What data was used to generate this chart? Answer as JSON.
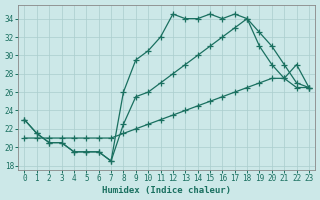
{
  "xlabel": "Humidex (Indice chaleur)",
  "bg_color": "#cce8e8",
  "line_color": "#1a7060",
  "grid_color": "#b0d4d4",
  "xlim": [
    -0.5,
    23.5
  ],
  "ylim": [
    17.5,
    35.5
  ],
  "yticks": [
    18,
    20,
    22,
    24,
    26,
    28,
    30,
    32,
    34
  ],
  "xticks": [
    0,
    1,
    2,
    3,
    4,
    5,
    6,
    7,
    8,
    9,
    10,
    11,
    12,
    13,
    14,
    15,
    16,
    17,
    18,
    19,
    20,
    21,
    22,
    23
  ],
  "line1_x": [
    0,
    1,
    2,
    3,
    4,
    5,
    6,
    7,
    8,
    9,
    10,
    11,
    12,
    13,
    14,
    15,
    16,
    17,
    18,
    19,
    20,
    21,
    22,
    23
  ],
  "line1_y": [
    23,
    21.5,
    20.5,
    20.5,
    19.5,
    19.5,
    19.5,
    18.5,
    26,
    29.5,
    30.5,
    32,
    34.5,
    34,
    34,
    34.5,
    34,
    34.5,
    34,
    32.5,
    31,
    29,
    27,
    26.5
  ],
  "line2_x": [
    0,
    1,
    2,
    3,
    4,
    5,
    6,
    7,
    8,
    9,
    10,
    11,
    12,
    13,
    14,
    15,
    16,
    17,
    18,
    19,
    20,
    21,
    22,
    23
  ],
  "line2_y": [
    23,
    21.5,
    20.5,
    20.5,
    19.5,
    19.5,
    19.5,
    18.5,
    22.5,
    25.5,
    26,
    27,
    28,
    29,
    30,
    31,
    32,
    33,
    34,
    31,
    29,
    27.5,
    29,
    26.5
  ],
  "line3_x": [
    0,
    1,
    2,
    3,
    4,
    5,
    6,
    7,
    8,
    9,
    10,
    11,
    12,
    13,
    14,
    15,
    16,
    17,
    18,
    19,
    20,
    21,
    22,
    23
  ],
  "line3_y": [
    21,
    21,
    21,
    21,
    21,
    21,
    21,
    21,
    21.5,
    22,
    22.5,
    23,
    23.5,
    24,
    24.5,
    25,
    25.5,
    26,
    26.5,
    27,
    27.5,
    27.5,
    26.5,
    26.5
  ]
}
